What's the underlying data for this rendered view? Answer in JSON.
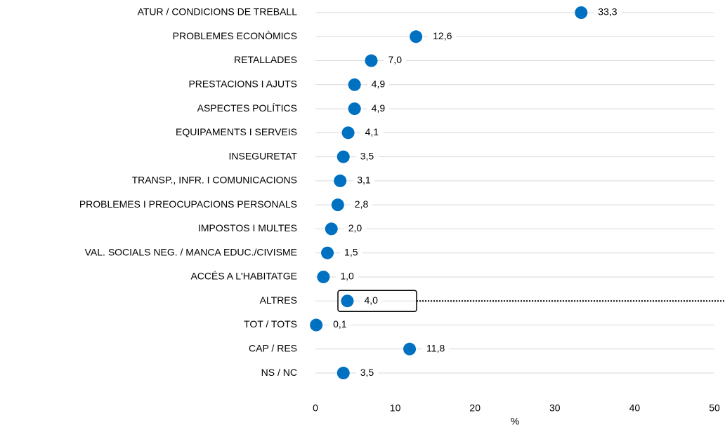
{
  "chart_data": {
    "type": "dot",
    "categories": [
      "ATUR / CONDICIONS DE TREBALL",
      "PROBLEMES ECONÒMICS",
      "RETALLADES",
      "PRESTACIONS I AJUTS",
      "ASPECTES POLÍTICS",
      "EQUIPAMENTS I SERVEIS",
      "INSEGURETAT",
      "TRANSP., INFR. I COMUNICACIONS",
      "PROBLEMES I PREOCUPACIONS PERSONALS",
      "IMPOSTOS I MULTES",
      "VAL. SOCIALS NEG. / MANCA EDUC./CIVISME",
      "ACCÉS A L'HABITATGE",
      "ALTRES",
      "TOT / TOTS",
      "CAP / RES",
      "NS / NC"
    ],
    "values": [
      33.3,
      12.6,
      7.0,
      4.9,
      4.9,
      4.1,
      3.5,
      3.1,
      2.8,
      2.0,
      1.5,
      1.0,
      4.0,
      0.1,
      11.8,
      3.5
    ],
    "value_labels": [
      "33,3",
      "12,6",
      "7,0",
      "4,9",
      "4,9",
      "4,1",
      "3,5",
      "3,1",
      "2,8",
      "2,0",
      "1,5",
      "1,0",
      "4,0",
      "0,1",
      "11,8",
      "3,5"
    ],
    "color": "#0070c0",
    "xlim": [
      0,
      50
    ],
    "xticks": [
      0,
      10,
      20,
      30,
      40,
      50
    ],
    "x_label": "%"
  }
}
